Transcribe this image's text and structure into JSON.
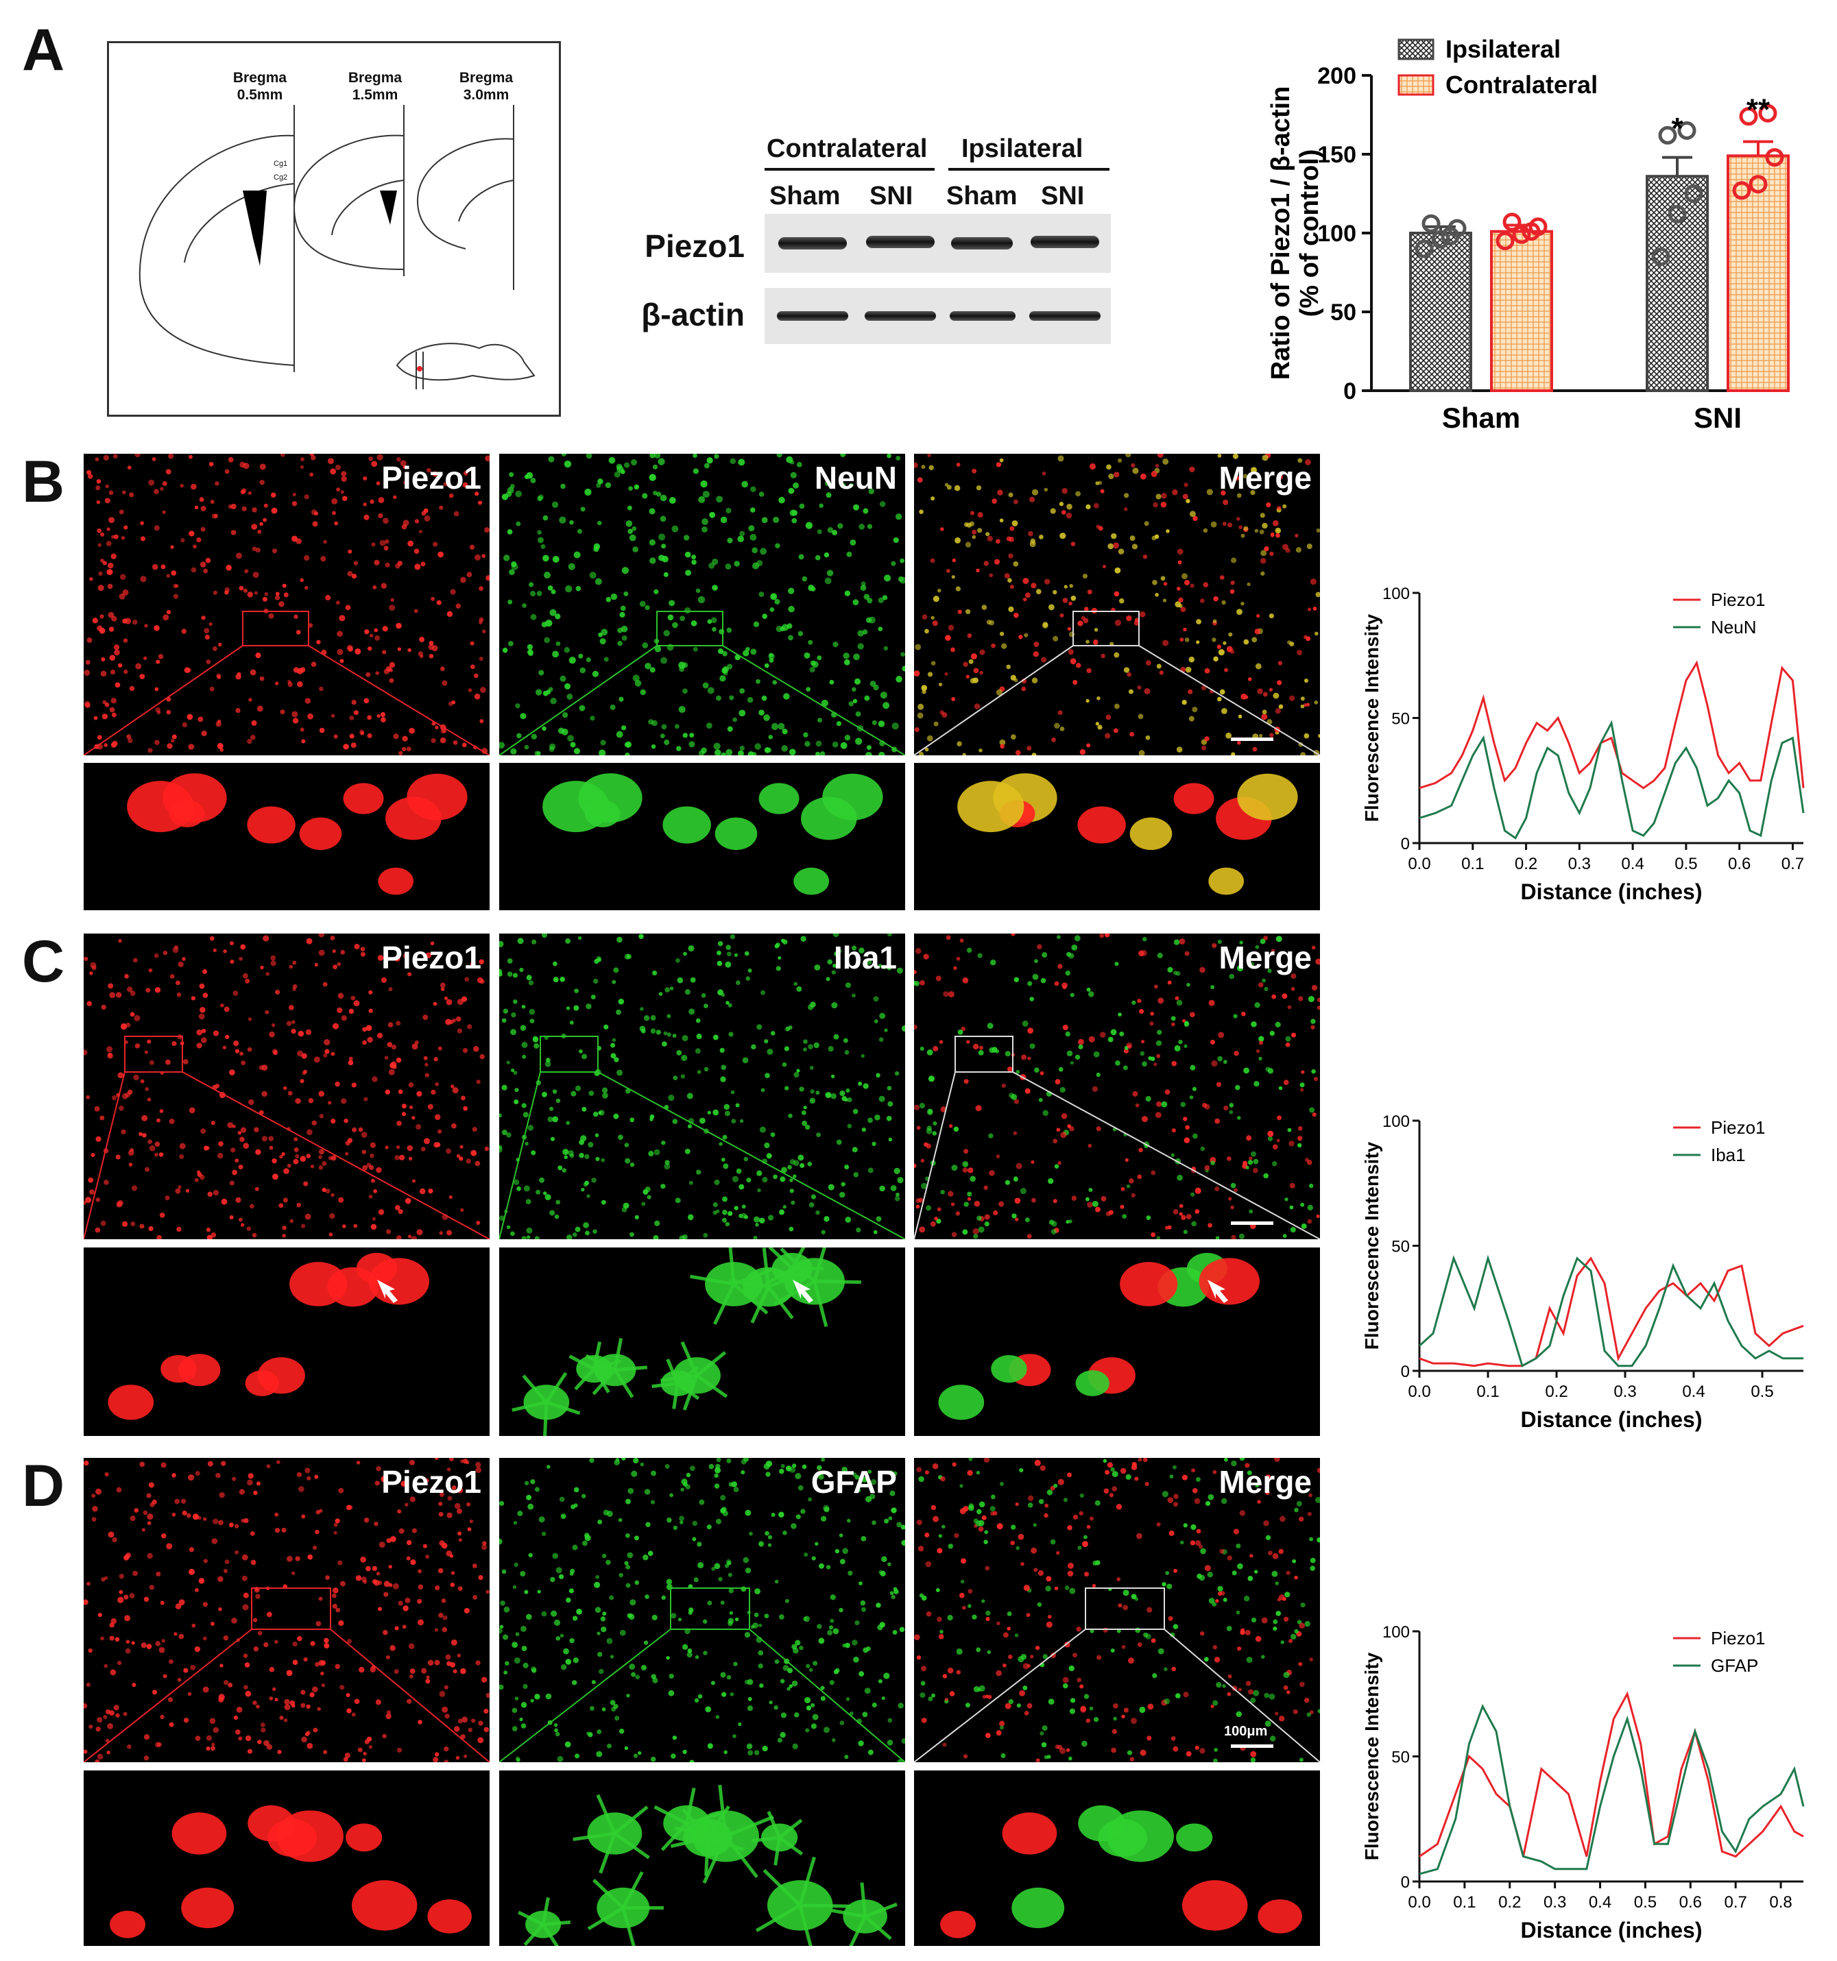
{
  "panels": {
    "A": "A",
    "B": "B",
    "C": "C",
    "D": "D"
  },
  "atlas": {
    "bregma": [
      {
        "line1": "Bregma",
        "line2": "0.5mm"
      },
      {
        "line1": "Bregma",
        "line2": "1.5mm"
      },
      {
        "line1": "Bregma",
        "line2": "3.0mm"
      }
    ],
    "region_labels": [
      "Cg1",
      "Cg2"
    ]
  },
  "western_blot": {
    "groups": [
      "Contralateral",
      "Ipsilateral"
    ],
    "lanes": [
      "Sham",
      "SNI",
      "Sham",
      "SNI"
    ],
    "rows": [
      "Piezo1",
      "β-actin"
    ]
  },
  "colors": {
    "ipsilateral": "#444444",
    "contralateral": "#e8242a",
    "contralateral_fill": "#f6c58a",
    "piezo1_line": "#e8242a",
    "marker_line": "#1f7a4d"
  },
  "chart_data": [
    {
      "type": "bar",
      "ylabel_line1": "Ratio of Piezo1 / β-actin",
      "ylabel_line2": "(% of control)",
      "categories": [
        "Sham",
        "SNI"
      ],
      "ylim": [
        0,
        200
      ],
      "yticks": [
        0,
        50,
        100,
        150,
        200
      ],
      "legend": "top-left",
      "series": [
        {
          "name": "Ipsilateral",
          "values": [
            100,
            136
          ],
          "sem": [
            4,
            12
          ],
          "points": [
            [
              90,
              96,
              103,
              106,
              98
            ],
            [
              85,
              112,
              125,
              162,
              165
            ]
          ]
        },
        {
          "name": "Contralateral",
          "values": [
            101,
            149
          ],
          "sem": [
            4,
            9
          ],
          "points": [
            [
              95,
              99,
              104,
              107,
              101
            ],
            [
              127,
              131,
              148,
              174,
              176
            ]
          ]
        }
      ],
      "annotations": [
        "*",
        "**"
      ]
    },
    {
      "type": "line",
      "xlabel": "Distance (inches)",
      "ylabel": "Fluorescence Intensity",
      "xlim": [
        0,
        0.72
      ],
      "xticks": [
        0.0,
        0.1,
        0.2,
        0.3,
        0.4,
        0.5,
        0.6,
        0.7
      ],
      "ylim": [
        0,
        100
      ],
      "yticks": [
        0,
        50,
        100
      ],
      "legend": "top-right",
      "series": [
        {
          "name": "Piezo1",
          "x": [
            0,
            0.03,
            0.06,
            0.08,
            0.1,
            0.12,
            0.14,
            0.16,
            0.18,
            0.2,
            0.22,
            0.24,
            0.26,
            0.28,
            0.3,
            0.32,
            0.34,
            0.36,
            0.38,
            0.4,
            0.42,
            0.44,
            0.46,
            0.48,
            0.5,
            0.52,
            0.54,
            0.56,
            0.58,
            0.6,
            0.62,
            0.64,
            0.66,
            0.68,
            0.7,
            0.72
          ],
          "y": [
            22,
            24,
            28,
            35,
            45,
            58,
            40,
            25,
            30,
            40,
            48,
            45,
            50,
            40,
            28,
            32,
            40,
            42,
            28,
            25,
            22,
            25,
            30,
            48,
            65,
            72,
            55,
            35,
            28,
            32,
            25,
            25,
            48,
            70,
            65,
            22
          ]
        },
        {
          "name": "NeuN",
          "x": [
            0,
            0.03,
            0.06,
            0.08,
            0.1,
            0.12,
            0.14,
            0.16,
            0.18,
            0.2,
            0.22,
            0.24,
            0.26,
            0.28,
            0.3,
            0.32,
            0.34,
            0.36,
            0.38,
            0.4,
            0.42,
            0.44,
            0.46,
            0.48,
            0.5,
            0.52,
            0.54,
            0.56,
            0.58,
            0.6,
            0.62,
            0.64,
            0.66,
            0.68,
            0.7,
            0.72
          ],
          "y": [
            10,
            12,
            15,
            25,
            35,
            42,
            22,
            5,
            2,
            10,
            28,
            38,
            35,
            20,
            12,
            22,
            40,
            48,
            25,
            5,
            3,
            8,
            20,
            32,
            38,
            30,
            15,
            18,
            25,
            20,
            5,
            3,
            25,
            40,
            42,
            12
          ]
        }
      ]
    },
    {
      "type": "line",
      "xlabel": "Distance (inches)",
      "ylabel": "Fluorescence Intensity",
      "xlim": [
        0,
        0.56
      ],
      "xticks": [
        0.0,
        0.1,
        0.2,
        0.3,
        0.4,
        0.5
      ],
      "ylim": [
        0,
        100
      ],
      "yticks": [
        0,
        50,
        100
      ],
      "legend": "top-right",
      "series": [
        {
          "name": "Piezo1",
          "x": [
            0,
            0.02,
            0.05,
            0.08,
            0.1,
            0.13,
            0.15,
            0.17,
            0.19,
            0.21,
            0.23,
            0.25,
            0.27,
            0.29,
            0.31,
            0.33,
            0.35,
            0.37,
            0.39,
            0.41,
            0.43,
            0.45,
            0.47,
            0.49,
            0.51,
            0.53,
            0.56
          ],
          "y": [
            5,
            3,
            3,
            2,
            3,
            2,
            2,
            5,
            25,
            15,
            38,
            45,
            35,
            5,
            15,
            25,
            32,
            35,
            30,
            35,
            28,
            40,
            42,
            15,
            10,
            15,
            18
          ]
        },
        {
          "name": "Iba1",
          "x": [
            0,
            0.02,
            0.05,
            0.08,
            0.1,
            0.13,
            0.15,
            0.17,
            0.19,
            0.21,
            0.23,
            0.25,
            0.27,
            0.29,
            0.31,
            0.33,
            0.35,
            0.37,
            0.39,
            0.41,
            0.43,
            0.45,
            0.47,
            0.49,
            0.51,
            0.53,
            0.56
          ],
          "y": [
            10,
            15,
            45,
            25,
            45,
            20,
            2,
            5,
            10,
            30,
            45,
            40,
            8,
            2,
            2,
            10,
            25,
            42,
            30,
            25,
            35,
            20,
            10,
            5,
            8,
            5,
            5
          ]
        }
      ]
    },
    {
      "type": "line",
      "xlabel": "Distance (inches)",
      "ylabel": "Fluorescence Intensity",
      "xlim": [
        0,
        0.85
      ],
      "xticks": [
        0.0,
        0.1,
        0.2,
        0.3,
        0.4,
        0.5,
        0.6,
        0.7,
        0.8
      ],
      "ylim": [
        0,
        100
      ],
      "yticks": [
        0,
        50,
        100
      ],
      "legend": "top-right",
      "series": [
        {
          "name": "Piezo1",
          "x": [
            0,
            0.04,
            0.08,
            0.11,
            0.14,
            0.17,
            0.2,
            0.23,
            0.27,
            0.3,
            0.33,
            0.37,
            0.4,
            0.43,
            0.46,
            0.49,
            0.52,
            0.55,
            0.58,
            0.61,
            0.64,
            0.67,
            0.7,
            0.73,
            0.76,
            0.8,
            0.83,
            0.85
          ],
          "y": [
            10,
            15,
            35,
            50,
            45,
            35,
            30,
            10,
            45,
            40,
            35,
            10,
            40,
            65,
            75,
            55,
            15,
            18,
            45,
            60,
            40,
            12,
            10,
            15,
            20,
            30,
            20,
            18
          ]
        },
        {
          "name": "GFAP",
          "x": [
            0,
            0.04,
            0.08,
            0.11,
            0.14,
            0.17,
            0.2,
            0.23,
            0.27,
            0.3,
            0.33,
            0.37,
            0.4,
            0.43,
            0.46,
            0.49,
            0.52,
            0.55,
            0.58,
            0.61,
            0.64,
            0.67,
            0.7,
            0.73,
            0.76,
            0.8,
            0.83,
            0.85
          ],
          "y": [
            3,
            5,
            25,
            55,
            70,
            60,
            30,
            10,
            8,
            5,
            5,
            5,
            30,
            50,
            65,
            45,
            15,
            15,
            38,
            60,
            45,
            20,
            12,
            25,
            30,
            35,
            45,
            30
          ]
        }
      ]
    }
  ],
  "micrographs": {
    "B": [
      "Piezo1",
      "NeuN",
      "Merge"
    ],
    "C": [
      "Piezo1",
      "Iba1",
      "Merge"
    ],
    "D": [
      "Piezo1",
      "GFAP",
      "Merge"
    ],
    "scale_text": "100μm"
  }
}
